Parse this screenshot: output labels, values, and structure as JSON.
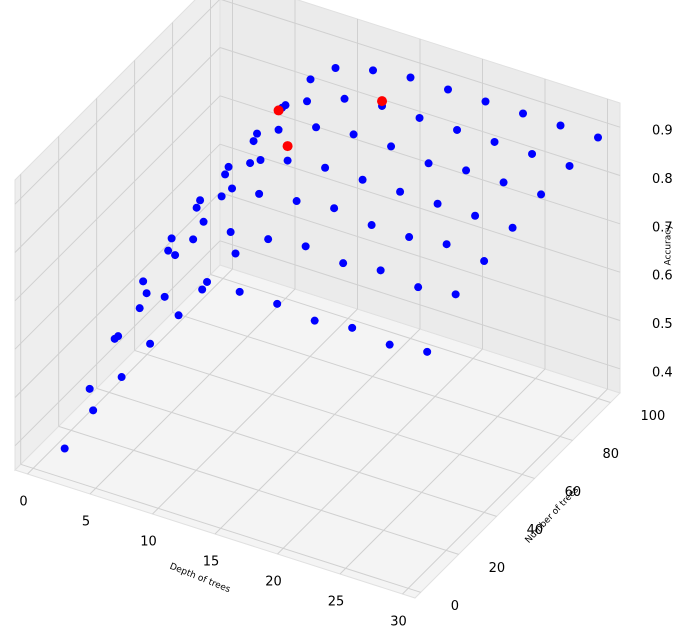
{
  "chart_data": {
    "type": "scatter3d",
    "xlabel": "Depth of trees",
    "ylabel": "Number of trees",
    "zlabel": "Accuracy",
    "xlim": [
      -1,
      31
    ],
    "ylim": [
      -3,
      105
    ],
    "zlim": [
      0.35,
      0.95
    ],
    "xticks": [
      0,
      5,
      10,
      15,
      20,
      25,
      30
    ],
    "yticks": [
      0,
      20,
      40,
      60,
      80,
      100
    ],
    "zticks": [
      0.4,
      0.5,
      0.6,
      0.7,
      0.8,
      0.9
    ],
    "grid": true,
    "series": [
      {
        "color": "#0000ff",
        "x": [
          1,
          1,
          1,
          1,
          1,
          1,
          1,
          3,
          3,
          3,
          3,
          3,
          3,
          3,
          5,
          5,
          5,
          5,
          5,
          5,
          5,
          7,
          7,
          7,
          7,
          7,
          7,
          7,
          9,
          9,
          9,
          9,
          9,
          9,
          9,
          12,
          12,
          12,
          12,
          12,
          12,
          12,
          15,
          15,
          15,
          15,
          15,
          15,
          15,
          18,
          18,
          18,
          18,
          18,
          18,
          18,
          21,
          21,
          21,
          21,
          21,
          21,
          21,
          24,
          24,
          24,
          24,
          24,
          24,
          24,
          27,
          27,
          27,
          27,
          27,
          27,
          27,
          30,
          30,
          30,
          30,
          30,
          30,
          30
        ],
        "y": [
          10,
          25,
          40,
          55,
          70,
          85,
          100,
          10,
          25,
          40,
          55,
          70,
          85,
          100,
          10,
          25,
          40,
          55,
          70,
          85,
          100,
          10,
          25,
          40,
          55,
          70,
          85,
          100,
          10,
          25,
          40,
          55,
          70,
          85,
          100,
          10,
          25,
          40,
          55,
          70,
          85,
          100,
          10,
          25,
          40,
          55,
          70,
          85,
          100,
          10,
          25,
          40,
          55,
          70,
          85,
          100,
          10,
          25,
          40,
          55,
          70,
          85,
          100,
          10,
          25,
          40,
          55,
          70,
          85,
          100,
          10,
          25,
          40,
          55,
          70,
          85,
          100,
          10,
          25,
          40,
          55,
          70,
          85,
          100
        ],
        "z": [
          0.36,
          0.38,
          0.39,
          0.4,
          0.4,
          0.41,
          0.41,
          0.5,
          0.55,
          0.58,
          0.6,
          0.61,
          0.62,
          0.62,
          0.62,
          0.68,
          0.71,
          0.73,
          0.74,
          0.75,
          0.75,
          0.7,
          0.76,
          0.79,
          0.8,
          0.81,
          0.82,
          0.82,
          0.74,
          0.8,
          0.83,
          0.84,
          0.85,
          0.85,
          0.86,
          0.78,
          0.84,
          0.86,
          0.87,
          0.88,
          0.88,
          0.88,
          0.8,
          0.85,
          0.87,
          0.88,
          0.89,
          0.89,
          0.89,
          0.8,
          0.86,
          0.88,
          0.88,
          0.89,
          0.89,
          0.89,
          0.79,
          0.85,
          0.87,
          0.88,
          0.88,
          0.89,
          0.89,
          0.8,
          0.86,
          0.87,
          0.88,
          0.89,
          0.89,
          0.89,
          0.79,
          0.85,
          0.88,
          0.88,
          0.89,
          0.89,
          0.89,
          0.8,
          0.86,
          0.87,
          0.88,
          0.89,
          0.89,
          0.89
        ]
      },
      {
        "color": "#ff0000",
        "x": [
          9,
          12,
          15
        ],
        "y": [
          70,
          55,
          85
        ],
        "z": [
          0.89,
          0.9,
          0.9
        ]
      }
    ]
  }
}
